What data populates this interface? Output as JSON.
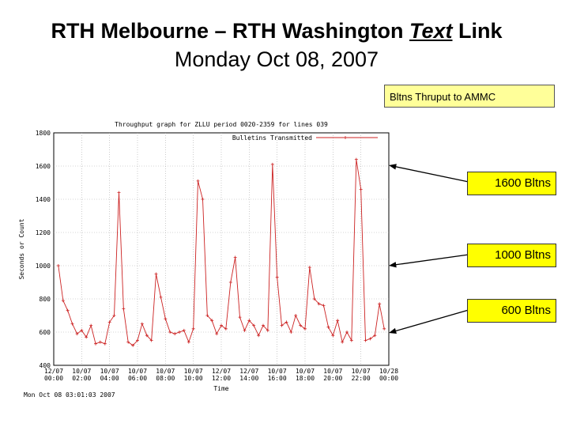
{
  "header": {
    "title_prefix": "RTH Melbourne – RTH Washington ",
    "title_link": "Text",
    "title_suffix": " Link",
    "date": "Monday Oct 08, 2007"
  },
  "annotations": {
    "ammc_label": "Bltns Thruput to AMMC",
    "callout_1600": "1600 Bltns",
    "callout_1000": "1000 Bltns",
    "callout_600": "600 Bltns"
  },
  "chart_data": {
    "type": "line",
    "title": "Throughput graph for ZLLU period 0020-2359 for lines 039",
    "xlabel": "Time",
    "ylabel": "Seconds or Count",
    "ylim": [
      400,
      1800
    ],
    "yticks": [
      "400",
      "600",
      "800",
      "1000",
      "1200",
      "1400",
      "1600",
      "1800"
    ],
    "xticks": [
      [
        "12/07",
        "00:00"
      ],
      [
        "10/07",
        "02:00"
      ],
      [
        "10/07",
        "04:00"
      ],
      [
        "10/07",
        "06:00"
      ],
      [
        "10/07",
        "08:00"
      ],
      [
        "10/07",
        "10:00"
      ],
      [
        "12/07",
        "12:00"
      ],
      [
        "12/07",
        "14:00"
      ],
      [
        "10/07",
        "16:00"
      ],
      [
        "10/07",
        "18:00"
      ],
      [
        "10/07",
        "20:00"
      ],
      [
        "10/07",
        "22:00"
      ],
      [
        "10/28",
        "00:00"
      ]
    ],
    "footer": "Mon Oct 08 03:01:03 2007",
    "series": [
      {
        "name": "Bulletins Transmitted",
        "color": "#cc2222",
        "x": [
          0.33,
          0.67,
          1.0,
          1.33,
          1.67,
          2.0,
          2.33,
          2.67,
          3.0,
          3.33,
          3.67,
          4.0,
          4.33,
          4.67,
          5.0,
          5.33,
          5.67,
          6.0,
          6.33,
          6.67,
          7.0,
          7.33,
          7.67,
          8.0,
          8.33,
          8.67,
          9.0,
          9.33,
          9.67,
          10.0,
          10.33,
          10.67,
          11.0,
          11.33,
          11.67,
          12.0,
          12.33,
          12.67,
          13.0,
          13.33,
          13.67,
          14.0,
          14.33,
          14.67,
          15.0,
          15.33,
          15.67,
          16.0,
          16.33,
          16.67,
          17.0,
          17.33,
          17.67,
          18.0,
          18.33,
          18.67,
          19.0,
          19.33,
          19.67,
          20.0,
          20.33,
          20.67,
          21.0,
          21.33,
          21.67,
          22.0,
          22.33,
          22.67,
          23.0,
          23.33,
          23.67
        ],
        "values": [
          1000,
          790,
          730,
          650,
          590,
          610,
          570,
          640,
          530,
          540,
          530,
          660,
          700,
          1440,
          740,
          540,
          520,
          550,
          650,
          580,
          550,
          950,
          810,
          680,
          600,
          590,
          600,
          610,
          540,
          620,
          1510,
          1400,
          700,
          670,
          590,
          640,
          620,
          900,
          1050,
          690,
          610,
          670,
          640,
          580,
          640,
          610,
          1610,
          930,
          640,
          660,
          600,
          700,
          640,
          620,
          990,
          800,
          770,
          760,
          630,
          580,
          670,
          540,
          600,
          550,
          1640,
          1460,
          550,
          560,
          580,
          770,
          620
        ]
      }
    ]
  }
}
